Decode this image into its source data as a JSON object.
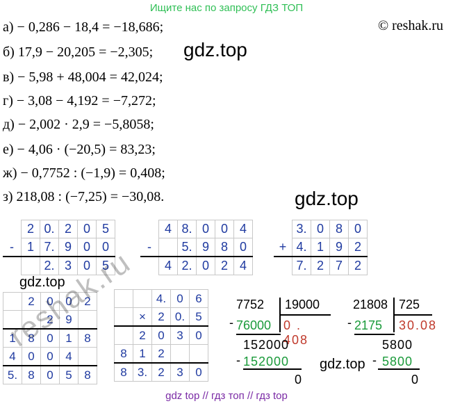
{
  "banner": "Ищите нас по запросу ГДЗ ТОП",
  "copyright": "© reshak.ru",
  "watermark": "gdz.top",
  "reshak_watermark": "reshak.ru",
  "footer": "gdz top // гдз топ // гдз top",
  "lines": [
    "а) − 0,286 − 18,4 = −18,686;",
    "б) 17,9 − 20,205 = −2,305;",
    "в) − 5,98 + 48,004 = 42,024;",
    "г) − 3,08 − 4,192 = −7,272;",
    "д) − 2,002 · 2,9 = −5,8058;",
    "е) − 4,06 · (−20,5) = 83,23;",
    "ж) − 0,7752 : (−1,9) = 0,408;",
    "з) 218,08 : (−7,25) = −30,08."
  ],
  "col1": {
    "sign": "-",
    "rows": [
      [
        "2",
        "0.",
        "2",
        "0",
        "5"
      ],
      [
        "1",
        "7.",
        "9",
        "0",
        "0"
      ],
      [
        "",
        "2.",
        "3",
        "0",
        "5"
      ]
    ]
  },
  "col2": {
    "sign": "-",
    "rows": [
      [
        "4",
        "8.",
        "0",
        "0",
        "4"
      ],
      [
        "",
        "5.",
        "9",
        "8",
        "0"
      ],
      [
        "4",
        "2.",
        "0",
        "2",
        "4"
      ]
    ]
  },
  "col3": {
    "sign": "+",
    "rows": [
      [
        "3.",
        "0",
        "8",
        "0"
      ],
      [
        "4.",
        "1",
        "9",
        "2"
      ],
      [
        "7.",
        "2",
        "7",
        "2"
      ]
    ]
  },
  "col4": {
    "rows": [
      [
        "2",
        "0",
        "0",
        "2"
      ],
      [
        "",
        "2",
        "9",
        ""
      ],
      [
        "1",
        "8",
        "0",
        "1",
        "8"
      ],
      [
        "4",
        "0",
        "0",
        "4",
        ""
      ],
      [
        "5.",
        "8",
        "0",
        "5",
        "8"
      ]
    ]
  },
  "col5": {
    "sign": "×",
    "rows": [
      [
        "4.",
        "0",
        "6"
      ],
      [
        "2",
        "0.",
        "5"
      ],
      [
        "2",
        "0",
        "3",
        "0"
      ],
      [
        "8",
        "1",
        "2",
        ""
      ],
      [
        "8",
        "3.",
        "2",
        "3",
        "0"
      ]
    ]
  },
  "div1": {
    "dividend": "7752",
    "divisor": "19000",
    "sub1": "76000",
    "quotient": "0 . 408",
    "r1": "152000",
    "sub2": "152000",
    "rest": "0"
  },
  "div2": {
    "dividend": "21808",
    "divisor": "725",
    "sub1": "2175",
    "quotient": "30.08",
    "r1": "5800",
    "sub2": "5800",
    "rest": "0"
  }
}
